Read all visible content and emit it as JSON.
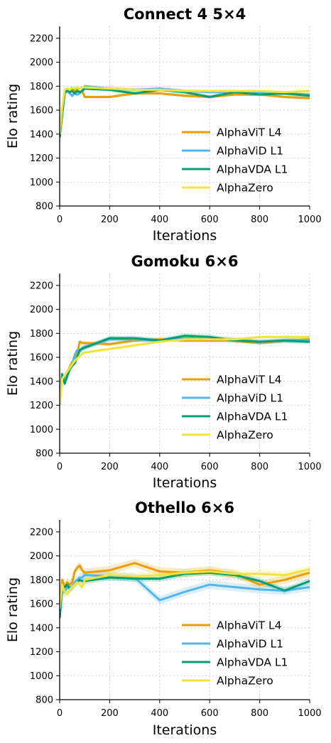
{
  "series_colors": {
    "AlphaViT L4": "#e69f00",
    "AlphaViD L1": "#56b4e9",
    "AlphaVDA L1": "#009e73",
    "AlphaZero": "#f0e442"
  },
  "chart_data": [
    {
      "type": "line",
      "title": "Connect 4 5×4",
      "xlabel": "Iterations",
      "ylabel": "Elo rating",
      "xlim": [
        0,
        1000
      ],
      "ylim": [
        800,
        2300
      ],
      "xticks": [
        0,
        200,
        400,
        600,
        800,
        1000
      ],
      "yticks": [
        800,
        1000,
        1200,
        1400,
        1600,
        1800,
        2000,
        2200
      ],
      "grid": true,
      "legend_position": "lower-right",
      "series": [
        {
          "name": "AlphaViT L4",
          "band": 12,
          "points": [
            [
              0,
              1400
            ],
            [
              10,
              1600
            ],
            [
              20,
              1760
            ],
            [
              30,
              1770
            ],
            [
              40,
              1760
            ],
            [
              50,
              1780
            ],
            [
              60,
              1760
            ],
            [
              70,
              1770
            ],
            [
              80,
              1750
            ],
            [
              90,
              1760
            ],
            [
              100,
              1710
            ],
            [
              200,
              1710
            ],
            [
              300,
              1740
            ],
            [
              400,
              1740
            ],
            [
              500,
              1720
            ],
            [
              600,
              1710
            ],
            [
              700,
              1730
            ],
            [
              800,
              1730
            ],
            [
              900,
              1710
            ],
            [
              1000,
              1700
            ]
          ]
        },
        {
          "name": "AlphaViD L1",
          "band": 15,
          "points": [
            [
              0,
              1380
            ],
            [
              10,
              1580
            ],
            [
              20,
              1740
            ],
            [
              30,
              1760
            ],
            [
              40,
              1740
            ],
            [
              50,
              1720
            ],
            [
              60,
              1740
            ],
            [
              70,
              1730
            ],
            [
              80,
              1740
            ],
            [
              90,
              1760
            ],
            [
              100,
              1800
            ],
            [
              200,
              1780
            ],
            [
              300,
              1770
            ],
            [
              400,
              1780
            ],
            [
              500,
              1760
            ],
            [
              600,
              1750
            ],
            [
              700,
              1750
            ],
            [
              800,
              1750
            ],
            [
              900,
              1740
            ],
            [
              1000,
              1730
            ]
          ]
        },
        {
          "name": "AlphaVDA L1",
          "band": 15,
          "points": [
            [
              0,
              1370
            ],
            [
              10,
              1560
            ],
            [
              20,
              1740
            ],
            [
              30,
              1770
            ],
            [
              40,
              1750
            ],
            [
              50,
              1760
            ],
            [
              60,
              1740
            ],
            [
              70,
              1760
            ],
            [
              80,
              1750
            ],
            [
              90,
              1760
            ],
            [
              100,
              1780
            ],
            [
              200,
              1770
            ],
            [
              300,
              1740
            ],
            [
              400,
              1770
            ],
            [
              500,
              1750
            ],
            [
              600,
              1710
            ],
            [
              700,
              1750
            ],
            [
              800,
              1730
            ],
            [
              900,
              1740
            ],
            [
              1000,
              1720
            ]
          ]
        },
        {
          "name": "AlphaZero",
          "band": 12,
          "points": [
            [
              0,
              1400
            ],
            [
              10,
              1620
            ],
            [
              20,
              1770
            ],
            [
              30,
              1780
            ],
            [
              40,
              1770
            ],
            [
              50,
              1790
            ],
            [
              60,
              1780
            ],
            [
              70,
              1790
            ],
            [
              80,
              1780
            ],
            [
              90,
              1790
            ],
            [
              100,
              1790
            ],
            [
              200,
              1780
            ],
            [
              300,
              1770
            ],
            [
              400,
              1770
            ],
            [
              500,
              1760
            ],
            [
              600,
              1760
            ],
            [
              700,
              1760
            ],
            [
              800,
              1760
            ],
            [
              900,
              1750
            ],
            [
              1000,
              1760
            ]
          ]
        }
      ]
    },
    {
      "type": "line",
      "title": "Gomoku 6×6",
      "xlabel": "Iterations",
      "ylabel": "Elo rating",
      "xlim": [
        0,
        1000
      ],
      "ylim": [
        800,
        2300
      ],
      "xticks": [
        0,
        200,
        400,
        600,
        800,
        1000
      ],
      "yticks": [
        800,
        1000,
        1200,
        1400,
        1600,
        1800,
        2000,
        2200
      ],
      "grid": true,
      "legend_position": "lower-right",
      "series": [
        {
          "name": "AlphaViT L4",
          "band": 15,
          "points": [
            [
              0,
              1200
            ],
            [
              10,
              1440
            ],
            [
              20,
              1420
            ],
            [
              30,
              1470
            ],
            [
              40,
              1520
            ],
            [
              50,
              1560
            ],
            [
              60,
              1580
            ],
            [
              70,
              1620
            ],
            [
              80,
              1730
            ],
            [
              90,
              1720
            ],
            [
              100,
              1720
            ],
            [
              200,
              1710
            ],
            [
              300,
              1740
            ],
            [
              400,
              1750
            ],
            [
              500,
              1740
            ],
            [
              600,
              1740
            ],
            [
              700,
              1740
            ],
            [
              800,
              1720
            ],
            [
              900,
              1740
            ],
            [
              1000,
              1750
            ]
          ]
        },
        {
          "name": "AlphaViD L1",
          "band": 20,
          "points": [
            [
              0,
              1200
            ],
            [
              10,
              1450
            ],
            [
              20,
              1400
            ],
            [
              30,
              1470
            ],
            [
              40,
              1500
            ],
            [
              50,
              1540
            ],
            [
              60,
              1620
            ],
            [
              70,
              1660
            ],
            [
              80,
              1650
            ],
            [
              90,
              1680
            ],
            [
              100,
              1690
            ],
            [
              200,
              1750
            ],
            [
              300,
              1750
            ],
            [
              400,
              1740
            ],
            [
              500,
              1760
            ],
            [
              600,
              1750
            ],
            [
              700,
              1750
            ],
            [
              800,
              1730
            ],
            [
              900,
              1740
            ],
            [
              1000,
              1740
            ]
          ]
        },
        {
          "name": "AlphaVDA L1",
          "band": 20,
          "points": [
            [
              0,
              1200
            ],
            [
              10,
              1460
            ],
            [
              20,
              1380
            ],
            [
              30,
              1440
            ],
            [
              40,
              1500
            ],
            [
              50,
              1530
            ],
            [
              60,
              1550
            ],
            [
              70,
              1600
            ],
            [
              80,
              1660
            ],
            [
              90,
              1670
            ],
            [
              100,
              1680
            ],
            [
              200,
              1760
            ],
            [
              300,
              1760
            ],
            [
              400,
              1740
            ],
            [
              500,
              1780
            ],
            [
              600,
              1770
            ],
            [
              700,
              1740
            ],
            [
              800,
              1730
            ],
            [
              900,
              1740
            ],
            [
              1000,
              1730
            ]
          ]
        },
        {
          "name": "AlphaZero",
          "band": 12,
          "points": [
            [
              0,
              1200
            ],
            [
              10,
              1420
            ],
            [
              20,
              1450
            ],
            [
              30,
              1480
            ],
            [
              40,
              1510
            ],
            [
              50,
              1540
            ],
            [
              60,
              1570
            ],
            [
              70,
              1590
            ],
            [
              80,
              1610
            ],
            [
              90,
              1630
            ],
            [
              100,
              1640
            ],
            [
              200,
              1670
            ],
            [
              300,
              1700
            ],
            [
              400,
              1730
            ],
            [
              500,
              1750
            ],
            [
              600,
              1750
            ],
            [
              700,
              1750
            ],
            [
              800,
              1770
            ],
            [
              900,
              1770
            ],
            [
              1000,
              1770
            ]
          ]
        }
      ]
    },
    {
      "type": "line",
      "title": "Othello 6×6",
      "xlabel": "Iterations",
      "ylabel": "Elo rating",
      "xlim": [
        0,
        1000
      ],
      "ylim": [
        800,
        2300
      ],
      "xticks": [
        0,
        200,
        400,
        600,
        800,
        1000
      ],
      "yticks": [
        800,
        1000,
        1200,
        1400,
        1600,
        1800,
        2000,
        2200
      ],
      "grid": true,
      "legend_position": "lower-right",
      "series": [
        {
          "name": "AlphaViT L4",
          "band": 35,
          "points": [
            [
              0,
              1600
            ],
            [
              10,
              1800
            ],
            [
              20,
              1740
            ],
            [
              30,
              1780
            ],
            [
              40,
              1760
            ],
            [
              50,
              1780
            ],
            [
              60,
              1870
            ],
            [
              70,
              1900
            ],
            [
              80,
              1920
            ],
            [
              90,
              1880
            ],
            [
              100,
              1860
            ],
            [
              200,
              1880
            ],
            [
              300,
              1940
            ],
            [
              400,
              1870
            ],
            [
              500,
              1860
            ],
            [
              600,
              1880
            ],
            [
              700,
              1850
            ],
            [
              800,
              1760
            ],
            [
              900,
              1800
            ],
            [
              1000,
              1860
            ]
          ]
        },
        {
          "name": "AlphaViD L1",
          "band": 35,
          "points": [
            [
              0,
              1480
            ],
            [
              10,
              1700
            ],
            [
              20,
              1700
            ],
            [
              30,
              1740
            ],
            [
              40,
              1720
            ],
            [
              50,
              1740
            ],
            [
              60,
              1780
            ],
            [
              70,
              1800
            ],
            [
              80,
              1820
            ],
            [
              90,
              1820
            ],
            [
              100,
              1840
            ],
            [
              200,
              1830
            ],
            [
              300,
              1820
            ],
            [
              400,
              1630
            ],
            [
              500,
              1700
            ],
            [
              600,
              1760
            ],
            [
              700,
              1740
            ],
            [
              800,
              1720
            ],
            [
              900,
              1710
            ],
            [
              1000,
              1740
            ]
          ]
        },
        {
          "name": "AlphaVDA L1",
          "band": 25,
          "points": [
            [
              0,
              1480
            ],
            [
              10,
              1750
            ],
            [
              20,
              1740
            ],
            [
              30,
              1760
            ],
            [
              40,
              1730
            ],
            [
              50,
              1740
            ],
            [
              60,
              1760
            ],
            [
              70,
              1780
            ],
            [
              80,
              1800
            ],
            [
              90,
              1790
            ],
            [
              100,
              1790
            ],
            [
              200,
              1820
            ],
            [
              300,
              1810
            ],
            [
              400,
              1810
            ],
            [
              500,
              1850
            ],
            [
              600,
              1860
            ],
            [
              700,
              1840
            ],
            [
              800,
              1790
            ],
            [
              900,
              1710
            ],
            [
              1000,
              1790
            ]
          ]
        },
        {
          "name": "AlphaZero",
          "band": 30,
          "points": [
            [
              0,
              1560
            ],
            [
              10,
              1760
            ],
            [
              20,
              1700
            ],
            [
              30,
              1680
            ],
            [
              40,
              1720
            ],
            [
              50,
              1740
            ],
            [
              60,
              1760
            ],
            [
              70,
              1780
            ],
            [
              80,
              1760
            ],
            [
              90,
              1740
            ],
            [
              100,
              1800
            ],
            [
              200,
              1840
            ],
            [
              300,
              1830
            ],
            [
              400,
              1840
            ],
            [
              500,
              1860
            ],
            [
              600,
              1870
            ],
            [
              700,
              1850
            ],
            [
              800,
              1850
            ],
            [
              900,
              1840
            ],
            [
              1000,
              1890
            ]
          ]
        }
      ]
    }
  ]
}
